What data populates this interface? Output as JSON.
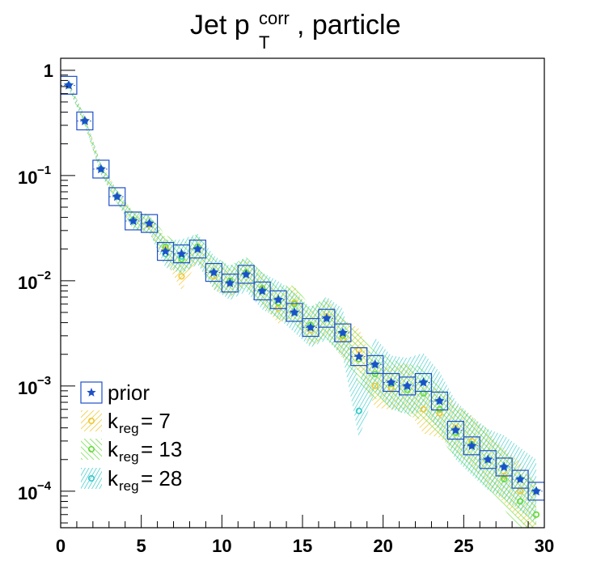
{
  "chart_data": {
    "type": "line",
    "title": "Jet p_T^corr, particle",
    "title_parts": {
      "main": "Jet p",
      "sub": "T",
      "sup": "corr",
      "tail": ", particle"
    },
    "xlim": [
      0,
      30
    ],
    "ylim": [
      4.5e-05,
      1.3
    ],
    "yscale": "log",
    "legend_position": "bottom-left",
    "x_ticks": [
      {
        "value": 0,
        "label": "0"
      },
      {
        "value": 5,
        "label": "5"
      },
      {
        "value": 10,
        "label": "10"
      },
      {
        "value": 15,
        "label": "15"
      },
      {
        "value": 20,
        "label": "20"
      },
      {
        "value": 25,
        "label": "25"
      },
      {
        "value": 30,
        "label": "30"
      }
    ],
    "y_ticks": [
      {
        "value": 1,
        "base": "1",
        "exp": ""
      },
      {
        "value": 0.1,
        "base": "10",
        "exp": "−1"
      },
      {
        "value": 0.01,
        "base": "10",
        "exp": "−2"
      },
      {
        "value": 0.001,
        "base": "10",
        "exp": "−3"
      },
      {
        "value": 0.0001,
        "base": "10",
        "exp": "−4"
      }
    ],
    "prior": {
      "name": "prior",
      "color": "#1e50c8",
      "x": [
        0.5,
        1.5,
        2.5,
        3.5,
        4.5,
        5.5,
        6.5,
        7.5,
        8.5,
        9.5,
        10.5,
        11.5,
        12.5,
        13.5,
        14.5,
        15.5,
        16.5,
        17.5,
        18.5,
        19.5,
        20.5,
        21.5,
        22.5,
        23.5,
        24.5,
        25.5,
        26.5,
        27.5,
        28.5,
        29.5
      ],
      "y": [
        0.72,
        0.33,
        0.115,
        0.063,
        0.037,
        0.035,
        0.019,
        0.018,
        0.02,
        0.012,
        0.0095,
        0.0115,
        0.008,
        0.0066,
        0.005,
        0.0036,
        0.0044,
        0.0032,
        0.0019,
        0.0016,
        0.00108,
        0.001,
        0.00108,
        0.00072,
        0.00038,
        0.00027,
        0.0002,
        0.00017,
        0.00013,
        0.0001
      ]
    },
    "bands": [
      {
        "name": "k_reg = 7",
        "label_base": "k",
        "label_sub": "reg",
        "label_tail": " = 7",
        "color": "#f0c832",
        "x": [
          0.5,
          1.5,
          2.5,
          3.5,
          4.5,
          5.5,
          6.5,
          7.5,
          8.5,
          9.5,
          10.5,
          11.5,
          12.5,
          13.5,
          14.5,
          15.5,
          16.5,
          17.5,
          18.5,
          19.5,
          20.5,
          21.5,
          22.5,
          23.5,
          24.5,
          25.5,
          26.5,
          27.5,
          28.5,
          29.5
        ],
        "y": [
          0.72,
          0.33,
          0.115,
          0.063,
          0.038,
          0.034,
          0.02,
          0.011,
          0.02,
          0.011,
          0.0095,
          0.012,
          0.0082,
          0.0055,
          0.0062,
          0.0034,
          0.0046,
          0.0028,
          0.0022,
          0.001,
          0.00095,
          0.001,
          0.0006,
          0.00055,
          0.0004,
          0.0003,
          0.0002,
          0.00014,
          0.0001,
          6e-05
        ],
        "err": [
          0.08,
          0.1,
          0.12,
          0.15,
          0.2,
          0.2,
          0.3,
          0.35,
          0.3,
          0.35,
          0.35,
          0.35,
          0.4,
          0.4,
          0.45,
          0.45,
          0.5,
          0.55,
          0.6,
          0.6,
          0.6,
          0.65,
          0.7,
          0.7,
          0.7,
          0.75,
          0.8,
          0.8,
          0.9,
          0.95
        ]
      },
      {
        "name": "k_reg = 13",
        "label_base": "k",
        "label_sub": "reg",
        "label_tail": " = 13",
        "color": "#64dc3c",
        "x": [
          0.5,
          1.5,
          2.5,
          3.5,
          4.5,
          5.5,
          6.5,
          7.5,
          8.5,
          9.5,
          10.5,
          11.5,
          12.5,
          13.5,
          14.5,
          15.5,
          16.5,
          17.5,
          18.5,
          19.5,
          20.5,
          21.5,
          22.5,
          23.5,
          24.5,
          25.5,
          26.5,
          27.5,
          28.5,
          29.5
        ],
        "y": [
          0.72,
          0.33,
          0.115,
          0.063,
          0.038,
          0.035,
          0.021,
          0.016,
          0.021,
          0.012,
          0.01,
          0.012,
          0.0085,
          0.0062,
          0.006,
          0.0038,
          0.0044,
          0.003,
          0.0018,
          0.0013,
          0.00105,
          0.00092,
          0.00085,
          0.0006,
          0.00036,
          0.00028,
          0.0002,
          0.00013,
          8e-05,
          6e-05
        ],
        "err": [
          0.08,
          0.1,
          0.12,
          0.15,
          0.2,
          0.22,
          0.3,
          0.4,
          0.35,
          0.4,
          0.4,
          0.4,
          0.45,
          0.45,
          0.5,
          0.5,
          0.55,
          0.6,
          0.7,
          0.7,
          0.7,
          0.75,
          0.8,
          0.8,
          0.8,
          0.85,
          0.9,
          0.9,
          1.0,
          1.0
        ]
      },
      {
        "name": "k_reg = 28",
        "label_base": "k",
        "label_sub": "reg",
        "label_tail": " = 28",
        "color": "#32c8c8",
        "x": [
          0.5,
          1.5,
          2.5,
          3.5,
          4.5,
          5.5,
          6.5,
          7.5,
          8.5,
          9.5,
          10.5,
          11.5,
          12.5,
          13.5,
          14.5,
          15.5,
          16.5,
          17.5,
          18.5,
          19.5,
          20.5,
          21.5,
          22.5,
          23.5,
          24.5,
          25.5,
          26.5,
          27.5,
          28.5,
          29.5
        ],
        "y": [
          0.72,
          0.33,
          0.115,
          0.063,
          0.037,
          0.035,
          0.018,
          0.017,
          0.02,
          0.012,
          0.0095,
          0.0115,
          0.008,
          0.0066,
          0.005,
          0.0036,
          0.0044,
          0.0032,
          0.00058,
          0.0016,
          0.00108,
          0.001,
          0.00108,
          0.00072,
          0.00038,
          0.00027,
          0.0002,
          0.00017,
          0.00013,
          0.0001
        ],
        "err": [
          0.08,
          0.1,
          0.12,
          0.15,
          0.2,
          0.22,
          0.35,
          0.45,
          0.4,
          0.45,
          0.45,
          0.45,
          0.5,
          0.5,
          0.55,
          0.55,
          0.6,
          0.7,
          0.8,
          0.8,
          0.8,
          0.85,
          0.9,
          0.9,
          0.9,
          0.9,
          0.95,
          1.0,
          1.0,
          1.0
        ]
      }
    ],
    "legend": [
      {
        "name": "prior",
        "color": "#1e50c8"
      },
      {
        "name": "k_reg = 7",
        "color": "#f0c832"
      },
      {
        "name": "k_reg = 13",
        "color": "#64dc3c"
      },
      {
        "name": "k_reg = 28",
        "color": "#32c8c8"
      }
    ]
  }
}
